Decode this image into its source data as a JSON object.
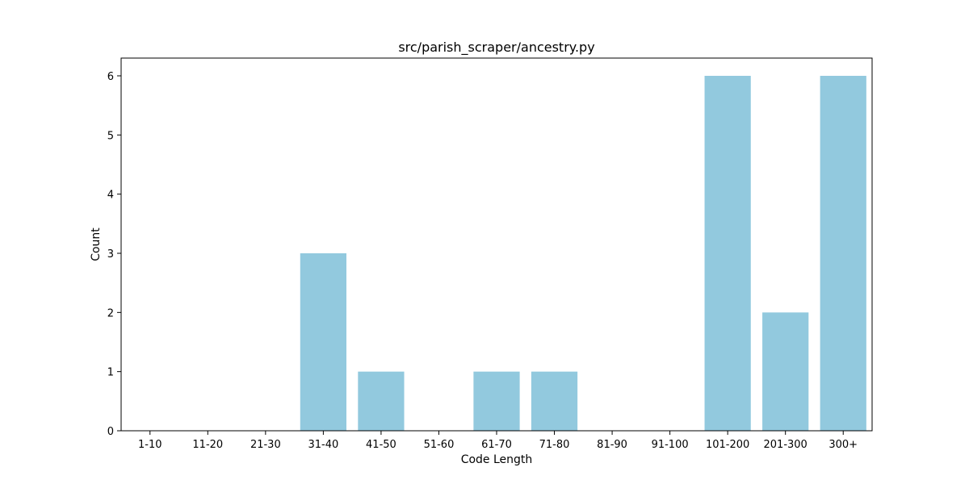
{
  "chart_data": {
    "type": "bar",
    "title": "src/parish_scraper/ancestry.py",
    "xlabel": "Code Length",
    "ylabel": "Count",
    "categories": [
      "1-10",
      "11-20",
      "21-30",
      "31-40",
      "41-50",
      "51-60",
      "61-70",
      "71-80",
      "81-90",
      "91-100",
      "101-200",
      "201-300",
      "300+"
    ],
    "values": [
      0,
      0,
      0,
      3,
      1,
      0,
      1,
      1,
      0,
      0,
      6,
      2,
      6
    ],
    "yticks": [
      0,
      1,
      2,
      3,
      4,
      5,
      6
    ],
    "ylim": [
      0,
      6.3
    ],
    "grid": false,
    "bar_color": "#92C9DE"
  }
}
